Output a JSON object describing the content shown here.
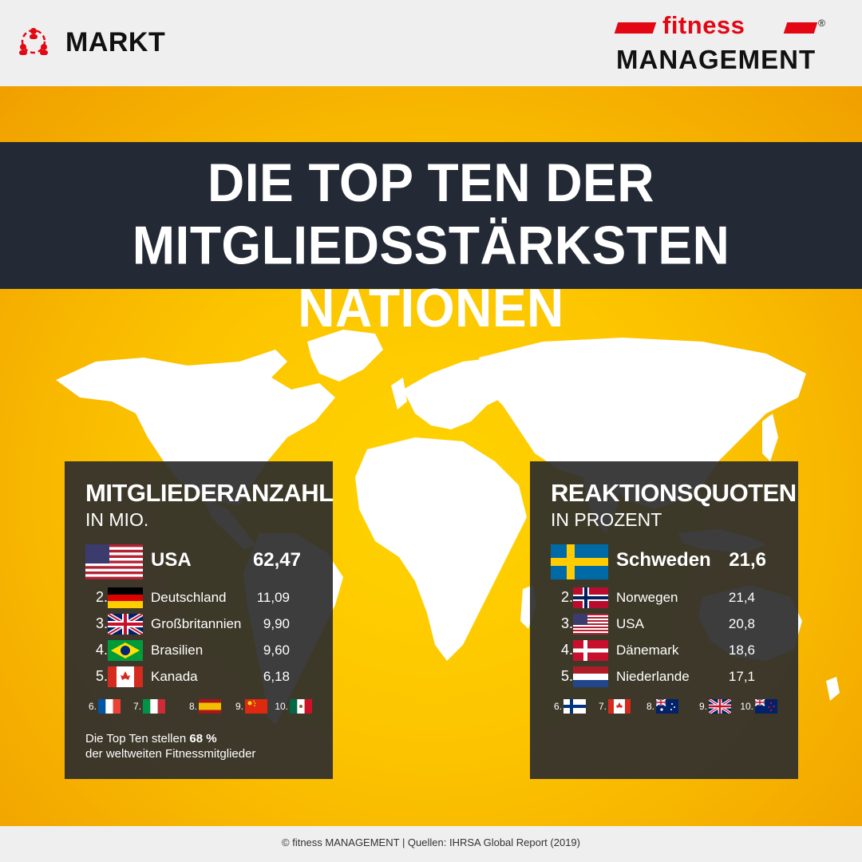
{
  "header": {
    "section_label": "MARKT",
    "logo_top": "fitness",
    "logo_bottom": "MANAGEMENT",
    "logo_reg": "®"
  },
  "title": {
    "line1": "DIE TOP TEN DER",
    "line2": "MITGLIEDSSTÄRKSTEN NATIONEN"
  },
  "members_panel": {
    "title": "MITGLIEDERANZAHL",
    "subtitle": "IN MIO.",
    "leader": {
      "flag": "usa-flag-icon",
      "name": "USA",
      "value": "62,47"
    },
    "rows": [
      {
        "rank": "2.",
        "flag": "germany-flag-icon",
        "name": "Deutschland",
        "value": "11,09"
      },
      {
        "rank": "3.",
        "flag": "uk-flag-icon",
        "name": "Großbritannien",
        "value": "9,90"
      },
      {
        "rank": "4.",
        "flag": "brazil-flag-icon",
        "name": "Brasilien",
        "value": "9,60"
      },
      {
        "rank": "5.",
        "flag": "canada-flag-icon",
        "name": "Kanada",
        "value": "6,18"
      }
    ],
    "minor": [
      {
        "rank": "6.",
        "flag": "france-flag-icon"
      },
      {
        "rank": "7.",
        "flag": "italy-flag-icon"
      },
      {
        "rank": "8.",
        "flag": "spain-flag-icon"
      },
      {
        "rank": "9.",
        "flag": "china-flag-icon"
      },
      {
        "rank": "10.",
        "flag": "mexico-flag-icon"
      }
    ],
    "note_prefix": "Die Top Ten stellen",
    "note_bold": "68 %",
    "note_suffix": "der weltweiten Fitnessmitglieder"
  },
  "rates_panel": {
    "title": "REAKTIONSQUOTEN",
    "subtitle": "IN PROZENT",
    "leader": {
      "flag": "sweden-flag-icon",
      "name": "Schweden",
      "value": "21,6"
    },
    "rows": [
      {
        "rank": "2.",
        "flag": "norway-flag-icon",
        "name": "Norwegen",
        "value": "21,4"
      },
      {
        "rank": "3.",
        "flag": "usa-flag-icon",
        "name": "USA",
        "value": "20,8"
      },
      {
        "rank": "4.",
        "flag": "denmark-flag-icon",
        "name": "Dänemark",
        "value": "18,6"
      },
      {
        "rank": "5.",
        "flag": "netherlands-flag-icon",
        "name": "Niederlande",
        "value": "17,1"
      }
    ],
    "minor": [
      {
        "rank": "6.",
        "flag": "finland-flag-icon"
      },
      {
        "rank": "7.",
        "flag": "canada-flag-icon"
      },
      {
        "rank": "8.",
        "flag": "australia-flag-icon"
      },
      {
        "rank": "9.",
        "flag": "uk-flag-icon"
      },
      {
        "rank": "10.",
        "flag": "new-zealand-flag-icon"
      }
    ]
  },
  "footer": {
    "text": "© fitness MANAGEMENT  |  Quellen: IHRSA Global Report (2019)"
  },
  "colors": {
    "brand_red": "#e30613",
    "background_yellow": "#fcc400",
    "title_bar": "#232a35",
    "panel_bg": "#2d2d2d"
  }
}
